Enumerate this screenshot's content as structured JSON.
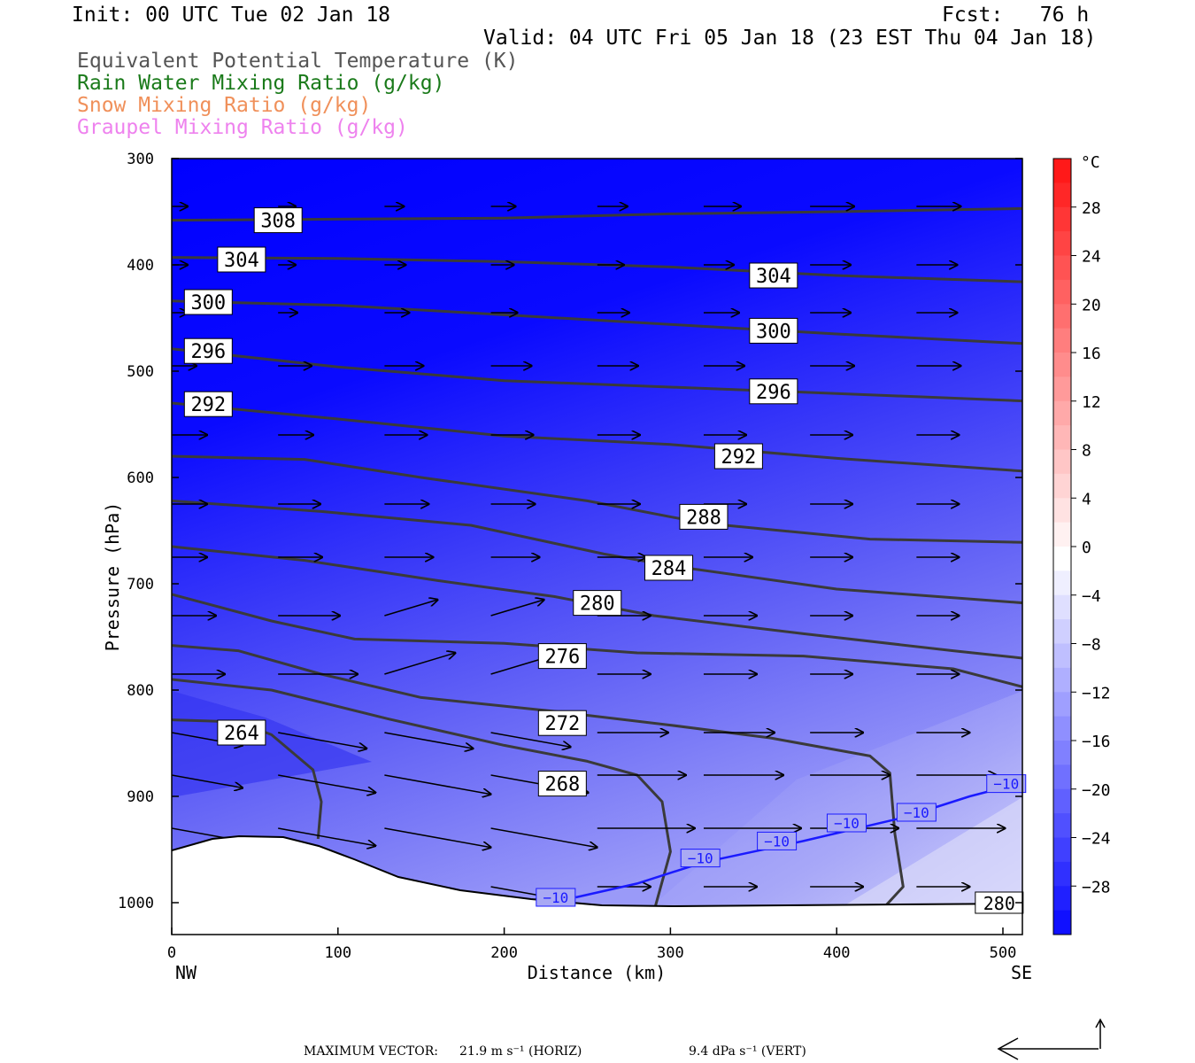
{
  "header": {
    "init": "Init: 00 UTC Tue 02 Jan 18",
    "fcst": "Fcst:   76 h",
    "valid": "Valid: 04 UTC Fri 05 Jan 18 (23 EST Thu 04 Jan 18)"
  },
  "legend": [
    {
      "text": "Equivalent Potential Temperature (K)",
      "color": "#555555"
    },
    {
      "text": "Rain Water Mixing Ratio (g/kg)",
      "color": "#1a7a1a"
    },
    {
      "text": "Snow Mixing Ratio (g/kg)",
      "color": "#f0905a"
    },
    {
      "text": "Graupel Mixing Ratio (g/kg)",
      "color": "#ee82ee"
    }
  ],
  "colors": {
    "theta_e_line": "#3a3a3a",
    "isotherm": "#1a1aff",
    "terrain": "#ffffff",
    "vector": "#000000"
  },
  "chart_data": {
    "type": "contour",
    "xlabel": "Distance (km)",
    "ylabel": "Pressure (hPa)",
    "xlim": [
      0,
      512
    ],
    "ylim": [
      1030,
      300
    ],
    "x_ticks": [
      0,
      100,
      200,
      300,
      400,
      500
    ],
    "y_ticks": [
      300,
      400,
      500,
      600,
      700,
      800,
      900,
      1000
    ],
    "x_end_labels": {
      "left": "NW",
      "right": "SE"
    },
    "colorbar": {
      "unit": "°C",
      "tick_labels": [
        "28",
        "24",
        "20",
        "16",
        "12",
        "8",
        "4",
        "0",
        "−4",
        "−8",
        "−12",
        "−16",
        "−20",
        "−24",
        "−28"
      ],
      "tick_values": [
        28,
        24,
        20,
        16,
        12,
        8,
        4,
        0,
        -4,
        -8,
        -12,
        -16,
        -20,
        -24,
        -28
      ],
      "range": [
        -32,
        32
      ]
    },
    "theta_e_contours": [
      {
        "level": 308,
        "label": "308",
        "label_at": [
          64,
          358
        ],
        "points": [
          [
            0,
            358
          ],
          [
            100,
            357
          ],
          [
            200,
            356
          ],
          [
            300,
            352
          ],
          [
            400,
            350
          ],
          [
            512,
            347
          ]
        ]
      },
      {
        "level": 304,
        "label": "304",
        "label_at": [
          42,
          395
        ],
        "points": [
          [
            0,
            393
          ],
          [
            100,
            394
          ],
          [
            200,
            397
          ],
          [
            300,
            402
          ],
          [
            400,
            410
          ],
          [
            512,
            416
          ]
        ]
      },
      {
        "level": 304,
        "label": "304",
        "label_at": [
          362,
          410
        ],
        "points": []
      },
      {
        "level": 300,
        "label": "300",
        "label_at": [
          22,
          435
        ],
        "points": [
          [
            0,
            434
          ],
          [
            100,
            438
          ],
          [
            200,
            447
          ],
          [
            300,
            456
          ],
          [
            400,
            465
          ],
          [
            512,
            474
          ]
        ]
      },
      {
        "level": 300,
        "label": "300",
        "label_at": [
          362,
          462
        ],
        "points": []
      },
      {
        "level": 296,
        "label": "296",
        "label_at": [
          22,
          481
        ],
        "points": [
          [
            0,
            479
          ],
          [
            100,
            496
          ],
          [
            200,
            509
          ],
          [
            300,
            515
          ],
          [
            400,
            521
          ],
          [
            512,
            528
          ]
        ]
      },
      {
        "level": 296,
        "label": "296",
        "label_at": [
          362,
          519
        ],
        "points": []
      },
      {
        "level": 292,
        "label": "292",
        "label_at": [
          22,
          531
        ],
        "points": [
          [
            0,
            530
          ],
          [
            100,
            545
          ],
          [
            200,
            561
          ],
          [
            300,
            569
          ],
          [
            400,
            582
          ],
          [
            512,
            594
          ]
        ]
      },
      {
        "level": 292,
        "label": "292",
        "label_at": [
          341,
          580
        ],
        "points": []
      },
      {
        "level": 288,
        "label": "288",
        "label_at": [
          320,
          637
        ],
        "points": [
          [
            0,
            580
          ],
          [
            80,
            583
          ],
          [
            150,
            600
          ],
          [
            250,
            622
          ],
          [
            320,
            643
          ],
          [
            420,
            658
          ],
          [
            512,
            661
          ]
        ]
      },
      {
        "level": 284,
        "label": "284",
        "label_at": [
          299,
          685
        ],
        "points": [
          [
            0,
            622
          ],
          [
            90,
            632
          ],
          [
            180,
            645
          ],
          [
            260,
            672
          ],
          [
            300,
            683
          ],
          [
            400,
            705
          ],
          [
            512,
            718
          ]
        ]
      },
      {
        "level": 280,
        "label": "280",
        "label_at": [
          256,
          718
        ],
        "points": [
          [
            0,
            665
          ],
          [
            80,
            678
          ],
          [
            160,
            697
          ],
          [
            230,
            712
          ],
          [
            290,
            730
          ],
          [
            380,
            747
          ],
          [
            470,
            763
          ],
          [
            512,
            770
          ]
        ]
      },
      {
        "level": 276,
        "label": "276",
        "label_at": [
          235,
          768
        ],
        "points": [
          [
            0,
            710
          ],
          [
            60,
            735
          ],
          [
            110,
            752
          ],
          [
            200,
            756
          ],
          [
            280,
            765
          ],
          [
            380,
            768
          ],
          [
            470,
            780
          ],
          [
            512,
            797
          ]
        ]
      },
      {
        "level": 272,
        "label": "272",
        "label_at": [
          235,
          831
        ],
        "points": [
          [
            0,
            758
          ],
          [
            40,
            763
          ],
          [
            90,
            785
          ],
          [
            150,
            807
          ],
          [
            230,
            820
          ],
          [
            300,
            833
          ],
          [
            360,
            845
          ],
          [
            420,
            862
          ],
          [
            432,
            878
          ],
          [
            435,
            935
          ],
          [
            440,
            985
          ],
          [
            430,
            1002
          ]
        ]
      },
      {
        "level": 268,
        "label": "268",
        "label_at": [
          235,
          888
        ],
        "points": [
          [
            0,
            790
          ],
          [
            60,
            800
          ],
          [
            130,
            827
          ],
          [
            200,
            852
          ],
          [
            250,
            867
          ],
          [
            280,
            880
          ],
          [
            295,
            905
          ],
          [
            300,
            952
          ],
          [
            291,
            1003
          ]
        ]
      },
      {
        "level": 264,
        "label": "264",
        "label_at": [
          42,
          840
        ],
        "points": [
          [
            0,
            828
          ],
          [
            40,
            830
          ],
          [
            60,
            842
          ],
          [
            85,
            875
          ],
          [
            90,
            905
          ],
          [
            88,
            940
          ]
        ]
      }
    ],
    "isotherm_minus10": {
      "level": -10,
      "label": "−10",
      "label_at": [
        [
          231,
          995
        ],
        [
          318,
          958
        ],
        [
          364,
          942
        ],
        [
          406,
          925
        ],
        [
          448,
          915
        ],
        [
          502,
          888
        ]
      ],
      "points": [
        [
          243,
          995
        ],
        [
          280,
          982
        ],
        [
          320,
          962
        ],
        [
          380,
          942
        ],
        [
          440,
          920
        ],
        [
          480,
          900
        ],
        [
          512,
          887
        ]
      ]
    },
    "surface_label": {
      "text": "280",
      "at": [
        485,
        1000
      ]
    },
    "wind_vectors_note": "Horizontal-vertical circulation vectors along section",
    "max_vector": {
      "label": "MAXIMUM VECTOR:",
      "horiz": "21.9 m s⁻¹ (HORIZ)",
      "vert": "9.4 dPa s⁻¹ (VERT)"
    }
  }
}
